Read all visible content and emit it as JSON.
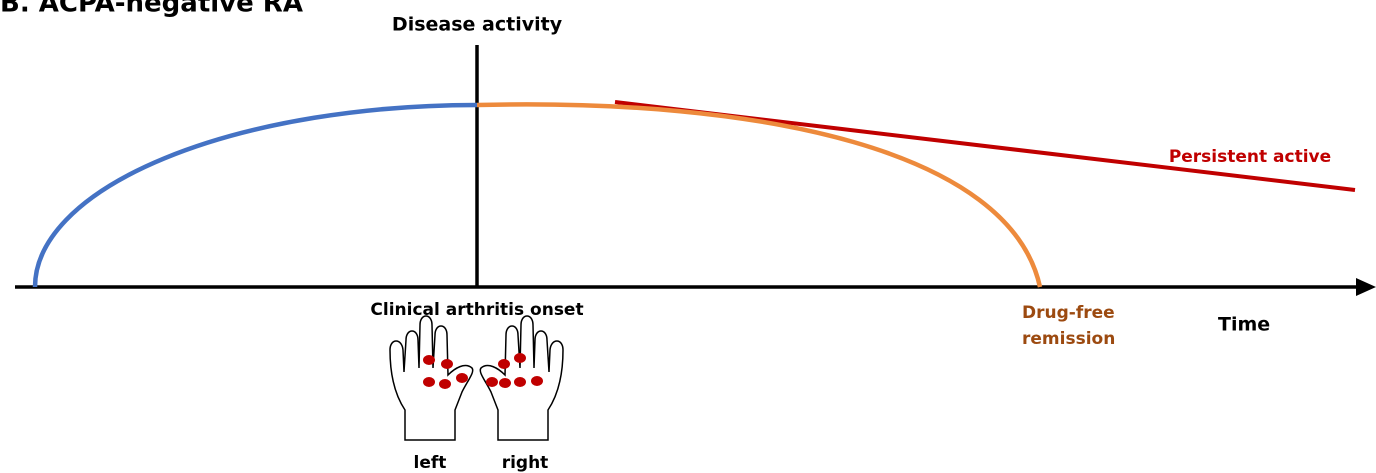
{
  "title": "B. ACPA-negative RA",
  "y_axis_label": "Disease activity",
  "x_axis_label": "Time",
  "onset_label": "Clinical arthritis onset",
  "outcomes": {
    "persistent": "Persistent active",
    "remission": [
      "Drug-free",
      "remission"
    ]
  },
  "hands": {
    "left": "left",
    "right": "right"
  }
}
